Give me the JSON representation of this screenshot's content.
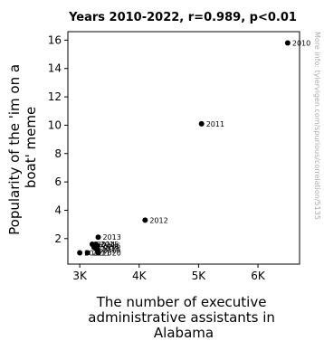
{
  "chart_data": {
    "type": "scatter",
    "title": "Years 2010-2022, r=0.989, p<0.01",
    "xlabel": "The number of executive administrative assistants in Alabama",
    "xlabel_lines": [
      "The number of executive",
      "administrative assistants in",
      "Alabama"
    ],
    "ylabel": "Popularity of the 'im on a boat' meme",
    "ylabel_lines": [
      "Popularity of the 'im on a",
      "boat' meme"
    ],
    "xlim": [
      2800,
      6700
    ],
    "ylim": [
      0.2,
      16.6
    ],
    "x_ticks": [
      3000,
      4000,
      5000,
      6000
    ],
    "x_tick_labels": [
      "3K",
      "4K",
      "5K",
      "6K"
    ],
    "y_ticks": [
      2,
      4,
      6,
      8,
      10,
      12,
      14,
      16
    ],
    "y_tick_labels": [
      "2",
      "4",
      "6",
      "8",
      "10",
      "12",
      "14",
      "16"
    ],
    "grid": false,
    "points": [
      {
        "x": 6500,
        "y": 15.8,
        "label": "2010"
      },
      {
        "x": 5050,
        "y": 10.1,
        "label": "2011"
      },
      {
        "x": 4100,
        "y": 3.3,
        "label": "2012"
      },
      {
        "x": 3310,
        "y": 2.1,
        "label": "2013"
      },
      {
        "x": 3210,
        "y": 1.6,
        "label": "2014"
      },
      {
        "x": 3270,
        "y": 1.6,
        "label": "2015"
      },
      {
        "x": 3300,
        "y": 1.5,
        "label": "2016"
      },
      {
        "x": 3240,
        "y": 1.4,
        "label": "2017"
      },
      {
        "x": 3280,
        "y": 1.3,
        "label": "2018"
      },
      {
        "x": 3300,
        "y": 1.2,
        "label": "2019"
      },
      {
        "x": 3310,
        "y": 1.0,
        "label": "2020"
      },
      {
        "x": 3130,
        "y": 1.0,
        "label": "2021"
      },
      {
        "x": 3000,
        "y": 1.0,
        "label": "2022"
      }
    ],
    "marker_color": "#000000",
    "watermark": "More info: tylervigen.com/spurious/correlation/5135"
  }
}
